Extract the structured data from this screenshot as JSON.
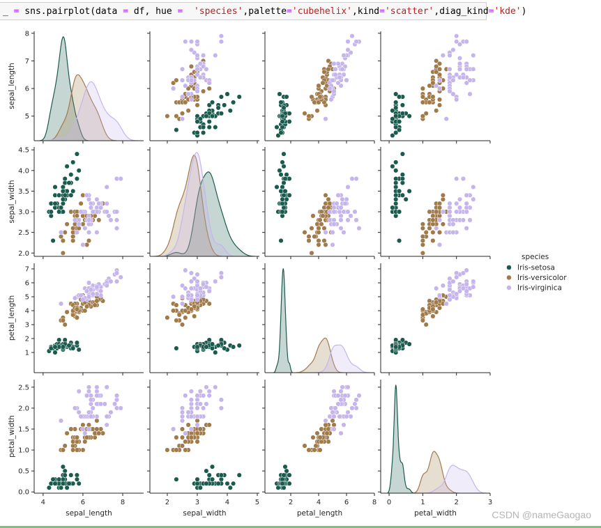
{
  "code_cell": {
    "tokens": [
      {
        "t": "_ ",
        "k": "plain"
      },
      {
        "t": "=",
        "k": "op"
      },
      {
        "t": " sns.pairplot(data ",
        "k": "plain"
      },
      {
        "t": "=",
        "k": "op"
      },
      {
        "t": " df, hue ",
        "k": "plain"
      },
      {
        "t": "=",
        "k": "op"
      },
      {
        "t": "  ",
        "k": "plain"
      },
      {
        "t": "'species'",
        "k": "str"
      },
      {
        "t": ",palette",
        "k": "plain"
      },
      {
        "t": "=",
        "k": "op"
      },
      {
        "t": "'cubehelix'",
        "k": "str"
      },
      {
        "t": ",kind",
        "k": "plain"
      },
      {
        "t": "=",
        "k": "op"
      },
      {
        "t": "'scatter'",
        "k": "str"
      },
      {
        "t": ",diag_kind",
        "k": "plain"
      },
      {
        "t": "=",
        "k": "op"
      },
      {
        "t": "'kde'",
        "k": "str"
      },
      {
        "t": ")",
        "k": "plain"
      }
    ]
  },
  "watermark": "CSDN @nameGaogao",
  "chart_data": {
    "type": "scatter",
    "subtype": "pairplot",
    "diag_kind": "kde",
    "variables": [
      "sepal_length",
      "sepal_width",
      "petal_length",
      "petal_width"
    ],
    "xlim": {
      "sepal_length": [
        3.55,
        9.05
      ],
      "sepal_width": [
        1.42,
        5.07
      ],
      "petal_length": [
        0.15,
        8.0
      ],
      "petal_width": [
        -0.25,
        3.0
      ]
    },
    "ylim": {
      "sepal_length": [
        4.11,
        8.07
      ],
      "sepal_width": [
        1.92,
        4.57
      ],
      "petal_length": [
        -0.45,
        7.4
      ],
      "petal_width": [
        -0.03,
        2.68
      ]
    },
    "xticks": {
      "sepal_length": [
        "4",
        "6",
        "8"
      ],
      "sepal_width": [
        "2",
        "3",
        "4",
        "5"
      ],
      "petal_length": [
        "2",
        "4",
        "6",
        "8"
      ],
      "petal_width": [
        "0",
        "1",
        "2",
        "3"
      ]
    },
    "yticks": {
      "sepal_length": [
        "5",
        "6",
        "7",
        "8"
      ],
      "sepal_width": [
        "2.0",
        "2.5",
        "3.0",
        "3.5",
        "4.0",
        "4.5"
      ],
      "petal_length": [
        "1",
        "2",
        "3",
        "4",
        "5",
        "6",
        "7"
      ],
      "petal_width": [
        "0.0",
        "0.5",
        "1.0",
        "1.5",
        "2.0",
        "2.5"
      ]
    },
    "legend": {
      "title": "species",
      "placement": "right"
    },
    "grid": false,
    "series": [
      {
        "name": "Iris-setosa",
        "color": "#1b5a4d",
        "rows": [
          [
            5.1,
            3.5,
            1.4,
            0.2
          ],
          [
            4.9,
            3.0,
            1.4,
            0.2
          ],
          [
            4.7,
            3.2,
            1.3,
            0.2
          ],
          [
            4.6,
            3.1,
            1.5,
            0.2
          ],
          [
            5.0,
            3.6,
            1.4,
            0.2
          ],
          [
            5.4,
            3.9,
            1.7,
            0.4
          ],
          [
            4.6,
            3.4,
            1.4,
            0.3
          ],
          [
            5.0,
            3.4,
            1.5,
            0.2
          ],
          [
            4.4,
            2.9,
            1.4,
            0.2
          ],
          [
            4.9,
            3.1,
            1.5,
            0.1
          ],
          [
            5.4,
            3.7,
            1.5,
            0.2
          ],
          [
            4.8,
            3.4,
            1.6,
            0.2
          ],
          [
            4.8,
            3.0,
            1.4,
            0.1
          ],
          [
            4.3,
            3.0,
            1.1,
            0.1
          ],
          [
            5.8,
            4.0,
            1.2,
            0.2
          ],
          [
            5.7,
            4.4,
            1.5,
            0.4
          ],
          [
            5.4,
            3.9,
            1.3,
            0.4
          ],
          [
            5.1,
            3.5,
            1.4,
            0.3
          ],
          [
            5.7,
            3.8,
            1.7,
            0.3
          ],
          [
            5.1,
            3.8,
            1.5,
            0.3
          ],
          [
            5.4,
            3.4,
            1.7,
            0.2
          ],
          [
            5.1,
            3.7,
            1.5,
            0.4
          ],
          [
            4.6,
            3.6,
            1.0,
            0.2
          ],
          [
            5.1,
            3.3,
            1.7,
            0.5
          ],
          [
            4.8,
            3.4,
            1.9,
            0.2
          ],
          [
            5.0,
            3.0,
            1.6,
            0.2
          ],
          [
            5.0,
            3.4,
            1.6,
            0.4
          ],
          [
            5.2,
            3.5,
            1.5,
            0.2
          ],
          [
            5.2,
            3.4,
            1.4,
            0.2
          ],
          [
            4.7,
            3.2,
            1.6,
            0.2
          ],
          [
            4.8,
            3.1,
            1.6,
            0.2
          ],
          [
            5.4,
            3.4,
            1.5,
            0.4
          ],
          [
            5.2,
            4.1,
            1.5,
            0.1
          ],
          [
            5.5,
            4.2,
            1.4,
            0.2
          ],
          [
            4.9,
            3.1,
            1.5,
            0.1
          ],
          [
            5.0,
            3.2,
            1.2,
            0.2
          ],
          [
            5.5,
            3.5,
            1.3,
            0.2
          ],
          [
            4.9,
            3.1,
            1.5,
            0.1
          ],
          [
            4.4,
            3.0,
            1.3,
            0.2
          ],
          [
            5.1,
            3.4,
            1.5,
            0.2
          ],
          [
            5.0,
            3.5,
            1.3,
            0.3
          ],
          [
            4.5,
            2.3,
            1.3,
            0.3
          ],
          [
            4.4,
            3.2,
            1.3,
            0.2
          ],
          [
            5.0,
            3.5,
            1.6,
            0.6
          ],
          [
            5.1,
            3.8,
            1.9,
            0.4
          ],
          [
            4.8,
            3.0,
            1.4,
            0.3
          ],
          [
            5.1,
            3.8,
            1.6,
            0.2
          ],
          [
            4.6,
            3.2,
            1.4,
            0.2
          ],
          [
            5.3,
            3.7,
            1.5,
            0.2
          ],
          [
            5.0,
            3.3,
            1.4,
            0.2
          ]
        ]
      },
      {
        "name": "Iris-versicolor",
        "color": "#a17a4a",
        "rows": [
          [
            7.0,
            3.2,
            4.7,
            1.4
          ],
          [
            6.4,
            3.2,
            4.5,
            1.5
          ],
          [
            6.9,
            3.1,
            4.9,
            1.5
          ],
          [
            5.5,
            2.3,
            4.0,
            1.3
          ],
          [
            6.5,
            2.8,
            4.6,
            1.5
          ],
          [
            5.7,
            2.8,
            4.5,
            1.3
          ],
          [
            6.3,
            3.3,
            4.7,
            1.6
          ],
          [
            4.9,
            2.4,
            3.3,
            1.0
          ],
          [
            6.6,
            2.9,
            4.6,
            1.3
          ],
          [
            5.2,
            2.7,
            3.9,
            1.4
          ],
          [
            5.0,
            2.0,
            3.5,
            1.0
          ],
          [
            5.9,
            3.0,
            4.2,
            1.5
          ],
          [
            6.0,
            2.2,
            4.0,
            1.0
          ],
          [
            6.1,
            2.9,
            4.7,
            1.4
          ],
          [
            5.6,
            2.9,
            3.6,
            1.3
          ],
          [
            6.7,
            3.1,
            4.4,
            1.4
          ],
          [
            5.6,
            3.0,
            4.5,
            1.5
          ],
          [
            5.8,
            2.7,
            4.1,
            1.0
          ],
          [
            6.2,
            2.2,
            4.5,
            1.5
          ],
          [
            5.6,
            2.5,
            3.9,
            1.1
          ],
          [
            5.9,
            3.2,
            4.8,
            1.8
          ],
          [
            6.1,
            2.8,
            4.0,
            1.3
          ],
          [
            6.3,
            2.5,
            4.9,
            1.5
          ],
          [
            6.1,
            2.8,
            4.7,
            1.2
          ],
          [
            6.4,
            2.9,
            4.3,
            1.3
          ],
          [
            6.6,
            3.0,
            4.4,
            1.4
          ],
          [
            6.8,
            2.8,
            4.8,
            1.4
          ],
          [
            6.7,
            3.0,
            5.0,
            1.7
          ],
          [
            6.0,
            2.9,
            4.5,
            1.5
          ],
          [
            5.7,
            2.6,
            3.5,
            1.0
          ],
          [
            5.5,
            2.4,
            3.8,
            1.1
          ],
          [
            5.5,
            2.4,
            3.7,
            1.0
          ],
          [
            5.8,
            2.7,
            3.9,
            1.2
          ],
          [
            6.0,
            2.7,
            5.1,
            1.6
          ],
          [
            5.4,
            3.0,
            4.5,
            1.5
          ],
          [
            6.0,
            3.4,
            4.5,
            1.6
          ],
          [
            6.7,
            3.1,
            4.7,
            1.5
          ],
          [
            6.3,
            2.3,
            4.4,
            1.3
          ],
          [
            5.6,
            3.0,
            4.1,
            1.3
          ],
          [
            5.5,
            2.5,
            4.0,
            1.3
          ],
          [
            5.5,
            2.6,
            4.4,
            1.2
          ],
          [
            6.1,
            3.0,
            4.6,
            1.4
          ],
          [
            5.8,
            2.6,
            4.0,
            1.2
          ],
          [
            5.0,
            2.3,
            3.3,
            1.0
          ],
          [
            5.6,
            2.7,
            4.2,
            1.3
          ],
          [
            5.7,
            3.0,
            4.2,
            1.2
          ],
          [
            5.7,
            2.9,
            4.2,
            1.3
          ],
          [
            6.2,
            2.9,
            4.3,
            1.3
          ],
          [
            5.1,
            2.5,
            3.0,
            1.1
          ],
          [
            5.7,
            2.8,
            4.1,
            1.3
          ]
        ]
      },
      {
        "name": "Iris-virginica",
        "color": "#c5b5ec",
        "rows": [
          [
            6.3,
            3.3,
            6.0,
            2.5
          ],
          [
            5.8,
            2.7,
            5.1,
            1.9
          ],
          [
            7.1,
            3.0,
            5.9,
            2.1
          ],
          [
            6.3,
            2.9,
            5.6,
            1.8
          ],
          [
            6.5,
            3.0,
            5.8,
            2.2
          ],
          [
            7.6,
            3.0,
            6.6,
            2.1
          ],
          [
            4.9,
            2.5,
            4.5,
            1.7
          ],
          [
            7.3,
            2.9,
            6.3,
            1.8
          ],
          [
            6.7,
            2.5,
            5.8,
            1.8
          ],
          [
            7.2,
            3.6,
            6.1,
            2.5
          ],
          [
            6.5,
            3.2,
            5.1,
            2.0
          ],
          [
            6.4,
            2.7,
            5.3,
            1.9
          ],
          [
            6.8,
            3.0,
            5.5,
            2.1
          ],
          [
            5.7,
            2.5,
            5.0,
            2.0
          ],
          [
            5.8,
            2.8,
            5.1,
            2.4
          ],
          [
            6.4,
            3.2,
            5.3,
            2.3
          ],
          [
            6.5,
            3.0,
            5.5,
            1.8
          ],
          [
            7.7,
            3.8,
            6.7,
            2.2
          ],
          [
            7.7,
            2.6,
            6.9,
            2.3
          ],
          [
            6.0,
            2.2,
            5.0,
            1.5
          ],
          [
            6.9,
            3.2,
            5.7,
            2.3
          ],
          [
            5.6,
            2.8,
            4.9,
            2.0
          ],
          [
            7.7,
            2.8,
            6.7,
            2.0
          ],
          [
            6.3,
            2.7,
            4.9,
            1.8
          ],
          [
            6.7,
            3.3,
            5.7,
            2.1
          ],
          [
            7.2,
            3.2,
            6.0,
            1.8
          ],
          [
            6.2,
            2.8,
            4.8,
            1.8
          ],
          [
            6.1,
            3.0,
            4.9,
            1.8
          ],
          [
            6.4,
            2.8,
            5.6,
            2.1
          ],
          [
            7.2,
            3.0,
            5.8,
            1.6
          ],
          [
            7.4,
            2.8,
            6.1,
            1.9
          ],
          [
            7.9,
            3.8,
            6.4,
            2.0
          ],
          [
            6.4,
            2.8,
            5.6,
            2.2
          ],
          [
            6.3,
            2.8,
            5.1,
            1.5
          ],
          [
            6.1,
            2.6,
            5.6,
            1.4
          ],
          [
            7.7,
            3.0,
            6.1,
            2.3
          ],
          [
            6.3,
            3.4,
            5.6,
            2.4
          ],
          [
            6.4,
            3.1,
            5.5,
            1.8
          ],
          [
            6.0,
            3.0,
            4.8,
            1.8
          ],
          [
            6.9,
            3.1,
            5.4,
            2.1
          ],
          [
            6.7,
            3.1,
            5.6,
            2.4
          ],
          [
            6.9,
            3.1,
            5.1,
            2.3
          ],
          [
            5.8,
            2.7,
            5.1,
            1.9
          ],
          [
            6.8,
            3.2,
            5.9,
            2.3
          ],
          [
            6.7,
            3.3,
            5.7,
            2.5
          ],
          [
            6.7,
            3.0,
            5.2,
            2.3
          ],
          [
            6.3,
            2.5,
            5.0,
            1.9
          ],
          [
            6.5,
            3.0,
            5.2,
            2.0
          ],
          [
            6.2,
            3.4,
            5.4,
            2.3
          ],
          [
            5.9,
            3.0,
            5.1,
            1.8
          ]
        ]
      }
    ]
  }
}
